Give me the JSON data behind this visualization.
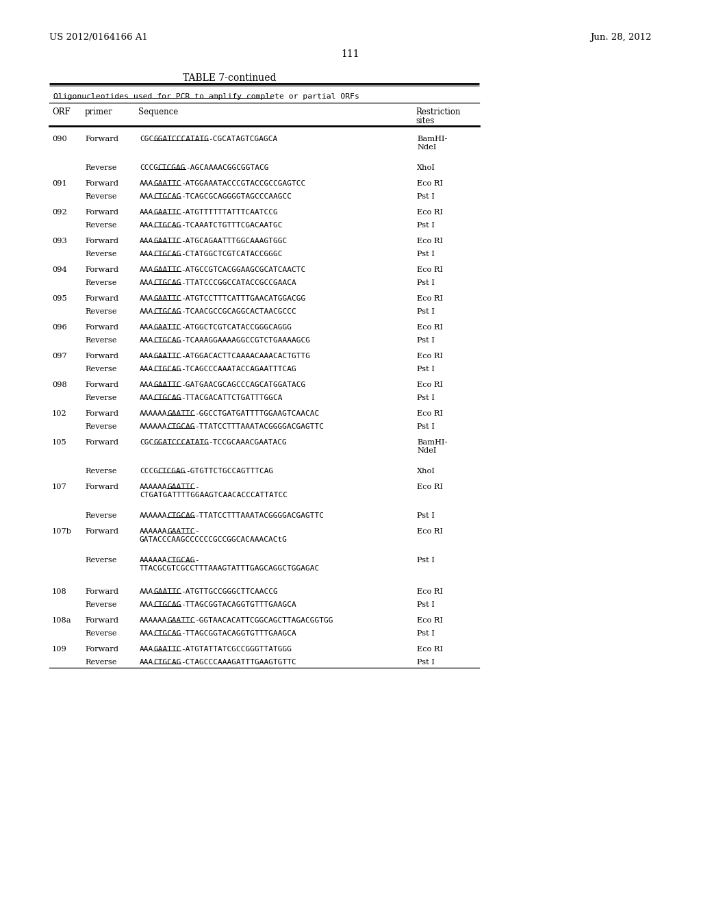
{
  "header_left": "US 2012/0164166 A1",
  "header_right": "Jun. 28, 2012",
  "page_number": "111",
  "table_title": "TABLE 7-continued",
  "table_subtitle": "Oligonucleotides used for PCR to amplify complete or partial ORFs",
  "rows": [
    {
      "orf": "090",
      "primer": "Forward",
      "seq": "CGCGGATCCCATATG-CGCATAGTCGAGCA",
      "ul": "GGATCCCATATG",
      "rest": "BamHI-\nNdeI"
    },
    {
      "orf": "",
      "primer": "Reverse",
      "seq": "CCCGCTCGAG-AGCAAAACGGCGGTACG",
      "ul": "CTCGAG",
      "rest": "XhoI"
    },
    {
      "orf": "091",
      "primer": "Forward",
      "seq": "AAAGAATTC-ATGGAAATACCCGTACCGCCGAGTCC",
      "ul": "GAATTC",
      "rest": "Eco RI"
    },
    {
      "orf": "",
      "primer": "Reverse",
      "seq": "AAACTGCAG-TCAGCGCAGGGGTAGCCCAAGCC",
      "ul": "CTGCAG",
      "rest": "Pst I"
    },
    {
      "orf": "092",
      "primer": "Forward",
      "seq": "AAAGAATTC-ATGTTTTTTATTTCAATCCG",
      "ul": "GAATTC",
      "rest": "Eco RI"
    },
    {
      "orf": "",
      "primer": "Reverse",
      "seq": "AAACTGCAG-TCAAATCTGTTTCGACAATGC",
      "ul": "CTGCAG",
      "rest": "Pst I"
    },
    {
      "orf": "093",
      "primer": "Forward",
      "seq": "AAAGAATTC-ATGCAGAATTTGGCAAAGTGGC",
      "ul": "GAATTC",
      "rest": "Eco RI"
    },
    {
      "orf": "",
      "primer": "Reverse",
      "seq": "AAACTGCAG-CTATGGCTCGTCATACCGGGC",
      "ul": "CTGCAG",
      "rest": "Pst I"
    },
    {
      "orf": "094",
      "primer": "Forward",
      "seq": "AAAGAATTC-ATGCCGTCACGGAAGCGCATCAACTC",
      "ul": "GAATTC",
      "rest": "Eco RI"
    },
    {
      "orf": "",
      "primer": "Reverse",
      "seq": "AAACTGCAG-TTATCCCGGCCATACCGCCGAACA",
      "ul": "CTGCAG",
      "rest": "Pst I"
    },
    {
      "orf": "095",
      "primer": "Forward",
      "seq": "AAAGAATTC-ATGTCCTTTCATTTGAACATGGACGG",
      "ul": "GAATTC",
      "rest": "Eco RI"
    },
    {
      "orf": "",
      "primer": "Reverse",
      "seq": "AAACTGCAG-TCAACGCCGCAGGCACTAACGCCC",
      "ul": "CTGCAG",
      "rest": "Pst I"
    },
    {
      "orf": "096",
      "primer": "Forward",
      "seq": "AAAGAATTC-ATGGCTCGTCATACCGGGCAGGG",
      "ul": "GAATTC",
      "rest": "Eco RI"
    },
    {
      "orf": "",
      "primer": "Reverse",
      "seq": "AAACTGCAG-TCAAAGGAAAAGGCCGTCTGAAAAGCG",
      "ul": "CTGCAG",
      "rest": "Pst I"
    },
    {
      "orf": "097",
      "primer": "Forward",
      "seq": "AAAGAATTC-ATGGACACTTCAAAACAAACACTGTTG",
      "ul": "GAATTC",
      "rest": "Eco RI"
    },
    {
      "orf": "",
      "primer": "Reverse",
      "seq": "AAACTGCAG-TCAGCCCAAATACCAGAATTTCAG",
      "ul": "CTGCAG",
      "rest": "Pst I"
    },
    {
      "orf": "098",
      "primer": "Forward",
      "seq": "AAAGAATTC-GATGAACGCAGCCCAGCATGGATACG",
      "ul": "GAATTC",
      "rest": "Eco RI"
    },
    {
      "orf": "",
      "primer": "Reverse",
      "seq": "AAACTGCAG-TTACGACATTCTGATTTGGCA",
      "ul": "CTGCAG",
      "rest": "Pst I"
    },
    {
      "orf": "102",
      "primer": "Forward",
      "seq": "AAAAAAGAATTC-GGCCTGATGATTTTGGAAGTCAACAC",
      "ul": "GAATTC",
      "rest": "Eco RI"
    },
    {
      "orf": "",
      "primer": "Reverse",
      "seq": "AAAAAACTGCAG-TTATCCTTTAAATACGGGGACGAGTTC",
      "ul": "CTGCAG",
      "rest": "Pst I"
    },
    {
      "orf": "105",
      "primer": "Forward",
      "seq": "CGCGGATCCCATATG-TCCGCAAACGAATACG",
      "ul": "GGATCCCATATG",
      "rest": "BamHI-\nNdeI"
    },
    {
      "orf": "",
      "primer": "Reverse",
      "seq": "CCCGCTCGAG-GTGTTCTGCCAGTTTCAG",
      "ul": "CTCGAG",
      "rest": "XhoI"
    },
    {
      "orf": "107",
      "primer": "Forward",
      "seq": "AAAAAAGAATTC-\nCTGATGATTTTGGAAGTCAACACCCATTATCC",
      "ul": "GAATTC",
      "rest": "Eco RI"
    },
    {
      "orf": "",
      "primer": "Reverse",
      "seq": "AAAAAACTGCAG-TTATCCTTTAAATACGGGGACGAGTTC",
      "ul": "CTGCAG",
      "rest": "Pst I"
    },
    {
      "orf": "107b",
      "primer": "Forward",
      "seq": "AAAAAAGAATTC-\nGATACCCAAGCCCCCCGCCGGCACAAACACtG",
      "ul": "GAATTC",
      "rest": "Eco RI"
    },
    {
      "orf": "",
      "primer": "Reverse",
      "seq": "AAAAAACTGCAG-\nTTACGCGTCGCCTTTAAAGTATTTGAGCAGGCTGGAGAC",
      "ul": "CTGCAG",
      "rest": "Pst I"
    },
    {
      "orf": "108",
      "primer": "Forward",
      "seq": "AAAGAATTC-ATGTTGCCGGGCTTCAACCG",
      "ul": "GAATTC",
      "rest": "Eco RI"
    },
    {
      "orf": "",
      "primer": "Reverse",
      "seq": "AAACTGCAG-TTAGCGGTACAGGTGTTTGAAGCA",
      "ul": "CTGCAG",
      "rest": "Pst I"
    },
    {
      "orf": "108a",
      "primer": "Forward",
      "seq": "AAAAAAGAATTC-GGTAACACATTCGGCAGCTTAGACGGTGG",
      "ul": "GAATTC",
      "rest": "Eco RI"
    },
    {
      "orf": "",
      "primer": "Reverse",
      "seq": "AAACTGCAG-TTAGCGGTACAGGTGTTTGAAGCA",
      "ul": "CTGCAG",
      "rest": "Pst I"
    },
    {
      "orf": "109",
      "primer": "Forward",
      "seq": "AAAGAATTC-ATGTATTATCGCCGGGTTATGGG",
      "ul": "GAATTC",
      "rest": "Eco RI"
    },
    {
      "orf": "",
      "primer": "Reverse",
      "seq": "AAACTGCAG-CTAGCCCAAAGATTTGAAGTGTTC",
      "ul": "CTGCAG",
      "rest": "Pst I"
    }
  ]
}
